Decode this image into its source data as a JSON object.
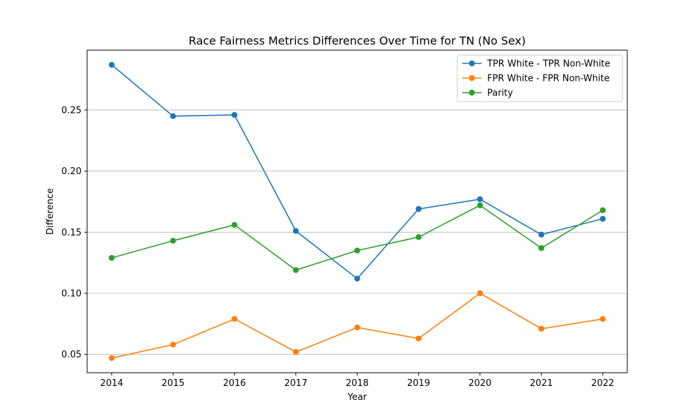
{
  "chart_data": {
    "type": "line",
    "title": "Race Fairness Metrics Differences Over Time for TN (No Sex)",
    "xlabel": "Year",
    "ylabel": "Difference",
    "x": [
      "2014",
      "2015",
      "2016",
      "2017",
      "2018",
      "2019",
      "2020",
      "2021",
      "2022"
    ],
    "xlim": [
      2013.6,
      2022.4
    ],
    "ylim": [
      0.035,
      0.299
    ],
    "yticks": [
      "0.05",
      "0.10",
      "0.15",
      "0.20",
      "0.25"
    ],
    "grid": "horizontal",
    "legend_position": "top-right",
    "series": [
      {
        "name": "TPR White - TPR Non-White",
        "color": "#1f77b4",
        "values": [
          0.287,
          0.245,
          0.246,
          0.151,
          0.112,
          0.169,
          0.177,
          0.148,
          0.161
        ]
      },
      {
        "name": "FPR White - FPR Non-White",
        "color": "#ff7f0e",
        "values": [
          0.047,
          0.058,
          0.079,
          0.052,
          0.072,
          0.063,
          0.1,
          0.071,
          0.079
        ]
      },
      {
        "name": "Parity",
        "color": "#2ca02c",
        "values": [
          0.129,
          0.143,
          0.156,
          0.119,
          0.135,
          0.146,
          0.172,
          0.137,
          0.168
        ]
      }
    ]
  }
}
